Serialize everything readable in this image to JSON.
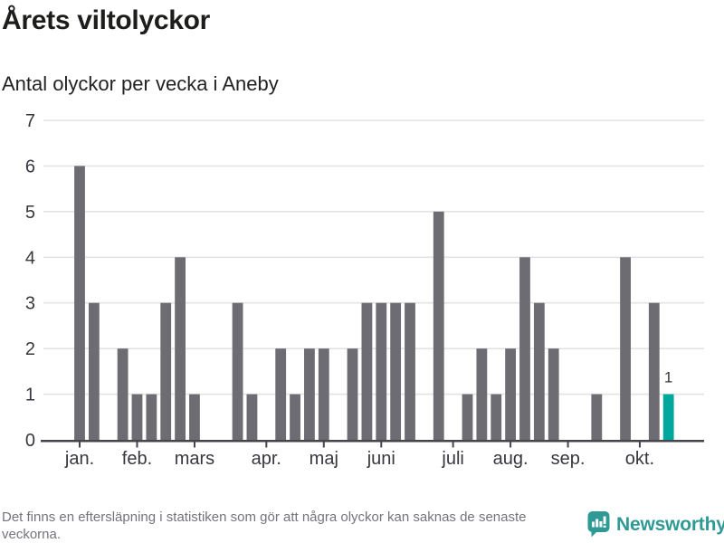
{
  "header": {
    "title": "Årets viltolyckor",
    "subtitle": "Antal olyckor per vecka i Aneby"
  },
  "chart_data": {
    "type": "bar",
    "title": "Årets viltolyckor",
    "subtitle": "Antal olyckor per vecka i Aneby",
    "x_unit": "vecka",
    "ylabel": "",
    "xlabel": "",
    "ylim": [
      0,
      7
    ],
    "yticks": [
      0,
      1,
      2,
      3,
      4,
      5,
      6,
      7
    ],
    "grid": "horizontal",
    "legend": "none",
    "weeks": 42,
    "values_by_week": [
      6,
      3,
      0,
      2,
      1,
      1,
      3,
      4,
      1,
      0,
      0,
      3,
      1,
      0,
      2,
      1,
      2,
      2,
      0,
      2,
      3,
      3,
      3,
      3,
      0,
      5,
      0,
      1,
      2,
      1,
      2,
      4,
      3,
      2,
      0,
      0,
      1,
      0,
      4,
      0,
      3,
      1
    ],
    "highlight_week": 42,
    "highlight_value_label": "1",
    "month_ticks": [
      {
        "label": "jan.",
        "week": 1
      },
      {
        "label": "feb.",
        "week": 5
      },
      {
        "label": "mars",
        "week": 9
      },
      {
        "label": "apr.",
        "week": 14
      },
      {
        "label": "maj",
        "week": 18
      },
      {
        "label": "juni",
        "week": 22
      },
      {
        "label": "juli",
        "week": 27
      },
      {
        "label": "aug.",
        "week": 31
      },
      {
        "label": "sep.",
        "week": 35
      },
      {
        "label": "okt.",
        "week": 40
      }
    ],
    "bar_color": "#6c6c72",
    "highlight_color": "#00a79c"
  },
  "footer": {
    "note": "Det finns en eftersläpning i statistiken som gör att några olyckor kan saknas de senaste veckorna.",
    "brand": "Newsworthy"
  },
  "colors": {
    "title_text": "#1d1d1b",
    "subtitle_text": "#222221",
    "axis_text": "#37373e",
    "annotation_text": "#37373e",
    "gridline": "#e3e3e3",
    "axis_line": "#45454b",
    "footer_text": "#74747c",
    "logo_teal": "#2f9a95"
  }
}
